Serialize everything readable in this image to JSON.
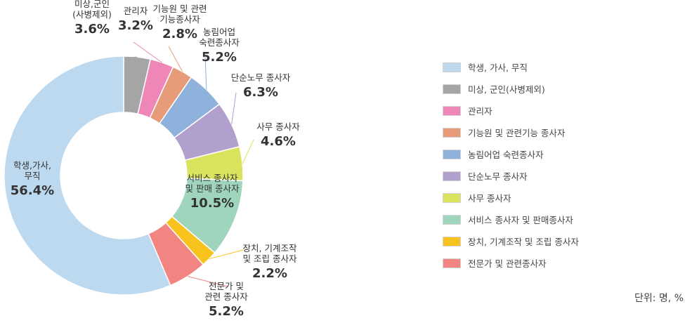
{
  "chart_data": {
    "type": "pie",
    "variant": "donut",
    "title": "",
    "unit_note": "단위: 명, %",
    "slices": [
      {
        "category": "미상, 군인(사병제외)",
        "callout": [
          "미상,군인",
          "(사병제외)"
        ],
        "value_label": "3.6%",
        "value": 3.6,
        "color": "#a5a5a5"
      },
      {
        "category": "관리자",
        "callout": [
          "관리자"
        ],
        "value_label": "3.2%",
        "value": 3.2,
        "color": "#ee86b8"
      },
      {
        "category": "기능원 및 관련기능 종사자",
        "callout": [
          "기능원 및 관련",
          "기능종사자"
        ],
        "value_label": "2.8%",
        "value": 2.8,
        "color": "#e69c78"
      },
      {
        "category": "농림어업 숙련종사자",
        "callout": [
          "농림어업",
          "숙련종사자"
        ],
        "value_label": "5.2%",
        "value": 5.2,
        "color": "#8fb2dc"
      },
      {
        "category": "단순노무 종사자",
        "callout": [
          "단순노무 종사자"
        ],
        "value_label": "6.3%",
        "value": 6.3,
        "color": "#b19fcd"
      },
      {
        "category": "사무 종사자",
        "callout": [
          "사무 종사자"
        ],
        "value_label": "4.6%",
        "value": 4.6,
        "color": "#d9e35e"
      },
      {
        "category": "서비스 종사자 및 판매종사자",
        "callout": [
          "서비스 종사자",
          "및 판매 종사자"
        ],
        "value_label": "10.5%",
        "value": 10.5,
        "color": "#9fd4bd"
      },
      {
        "category": "장치, 기계조작 및 조립 종사자",
        "callout": [
          "장치, 기계조작",
          "및 조립 종사자"
        ],
        "value_label": "2.2%",
        "value": 2.2,
        "color": "#f7c31c"
      },
      {
        "category": "전문가 및 관련종사자",
        "callout": [
          "전문가 및",
          "관련 종사자"
        ],
        "value_label": "5.2%",
        "value": 5.2,
        "color": "#f28582"
      },
      {
        "category": "학생, 가사, 무직",
        "callout": [
          "학생,가사,",
          "무직"
        ],
        "value_label": "56.4%",
        "value": 56.4,
        "color": "#bcd9ef"
      }
    ],
    "legend": [
      {
        "label": "학생, 가사, 무직",
        "color": "#bcd9ef"
      },
      {
        "label": "미상, 군인(사병제외)",
        "color": "#a5a5a5"
      },
      {
        "label": "관리자",
        "color": "#ee86b8"
      },
      {
        "label": "기능원 및 관련기능 종사자",
        "color": "#e69c78"
      },
      {
        "label": "농림어업 숙련종사자",
        "color": "#8fb2dc"
      },
      {
        "label": "단순노무 종사자",
        "color": "#b19fcd"
      },
      {
        "label": "사무 종사자",
        "color": "#d9e35e"
      },
      {
        "label": "서비스 종사자 및 판매종사자",
        "color": "#9fd4bd"
      },
      {
        "label": "장치, 기계조작 및 조립 종사자",
        "color": "#f7c31c"
      },
      {
        "label": "전문가 및 관련종사자",
        "color": "#f28582"
      }
    ],
    "legend_position": "right"
  }
}
